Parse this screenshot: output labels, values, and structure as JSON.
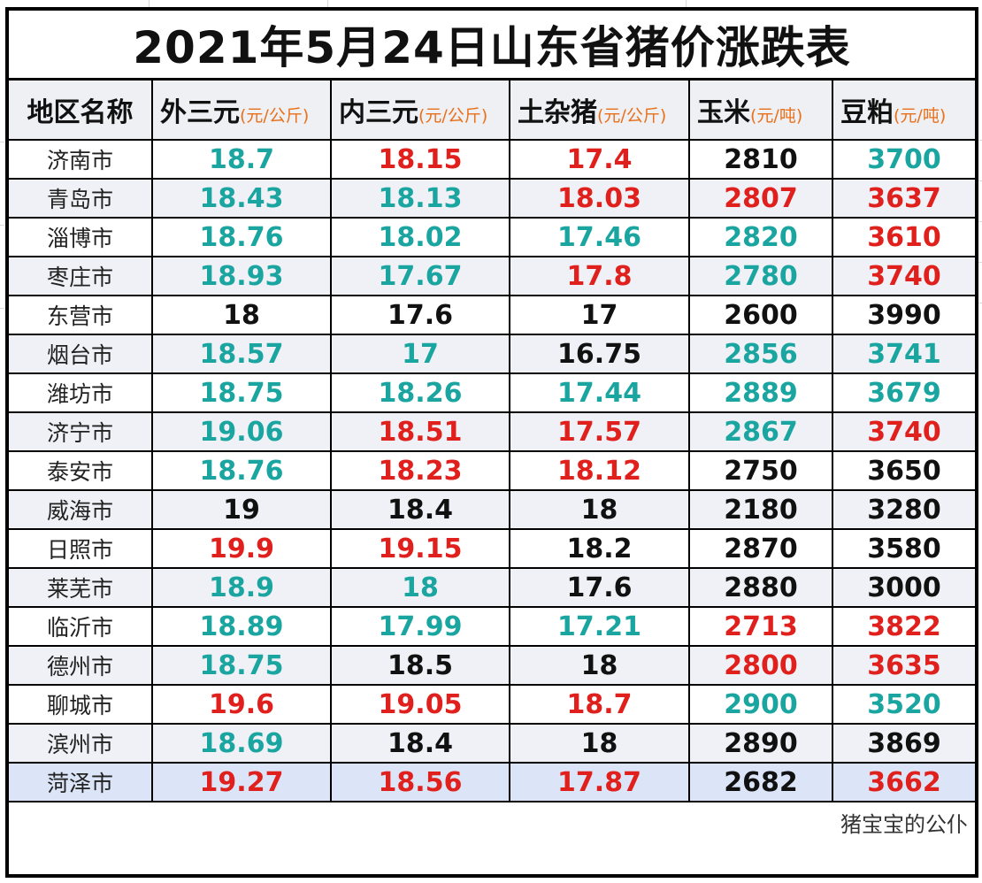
{
  "title": "2021年5月24日山东省猪价涨跌表",
  "colors": {
    "up": "#e0201c",
    "down": "#1aa5a0",
    "flat": "#111111",
    "unit": "#e8701a",
    "row_alt": "#eff1f6",
    "row_highlight": "#dbe5f7"
  },
  "columns": [
    {
      "label": "地区名称",
      "unit": ""
    },
    {
      "label": "外三元",
      "unit": "(元/公斤)"
    },
    {
      "label": "内三元",
      "unit": "(元/公斤)"
    },
    {
      "label": "土杂猪",
      "unit": "(元/公斤)"
    },
    {
      "label": "玉米",
      "unit": "(元/吨)"
    },
    {
      "label": "豆粕",
      "unit": "(元/吨)"
    }
  ],
  "rows": [
    {
      "region": "济南市",
      "cells": [
        {
          "v": "18.7",
          "t": "down"
        },
        {
          "v": "18.15",
          "t": "up"
        },
        {
          "v": "17.4",
          "t": "up"
        },
        {
          "v": "2810",
          "t": "flat"
        },
        {
          "v": "3700",
          "t": "down"
        }
      ]
    },
    {
      "region": "青岛市",
      "cells": [
        {
          "v": "18.43",
          "t": "down"
        },
        {
          "v": "18.13",
          "t": "down"
        },
        {
          "v": "18.03",
          "t": "up"
        },
        {
          "v": "2807",
          "t": "up"
        },
        {
          "v": "3637",
          "t": "up"
        }
      ]
    },
    {
      "region": "淄博市",
      "cells": [
        {
          "v": "18.76",
          "t": "down"
        },
        {
          "v": "18.02",
          "t": "down"
        },
        {
          "v": "17.46",
          "t": "down"
        },
        {
          "v": "2820",
          "t": "down"
        },
        {
          "v": "3610",
          "t": "up"
        }
      ]
    },
    {
      "region": "枣庄市",
      "cells": [
        {
          "v": "18.93",
          "t": "down"
        },
        {
          "v": "17.67",
          "t": "down"
        },
        {
          "v": "17.8",
          "t": "up"
        },
        {
          "v": "2780",
          "t": "down"
        },
        {
          "v": "3740",
          "t": "up"
        }
      ]
    },
    {
      "region": "东营市",
      "cells": [
        {
          "v": "18",
          "t": "flat"
        },
        {
          "v": "17.6",
          "t": "flat"
        },
        {
          "v": "17",
          "t": "flat"
        },
        {
          "v": "2600",
          "t": "flat"
        },
        {
          "v": "3990",
          "t": "flat"
        }
      ]
    },
    {
      "region": "烟台市",
      "cells": [
        {
          "v": "18.57",
          "t": "down"
        },
        {
          "v": "17",
          "t": "down"
        },
        {
          "v": "16.75",
          "t": "flat"
        },
        {
          "v": "2856",
          "t": "down"
        },
        {
          "v": "3741",
          "t": "down"
        }
      ]
    },
    {
      "region": "潍坊市",
      "cells": [
        {
          "v": "18.75",
          "t": "down"
        },
        {
          "v": "18.26",
          "t": "down"
        },
        {
          "v": "17.44",
          "t": "down"
        },
        {
          "v": "2889",
          "t": "down"
        },
        {
          "v": "3679",
          "t": "down"
        }
      ]
    },
    {
      "region": "济宁市",
      "cells": [
        {
          "v": "19.06",
          "t": "down"
        },
        {
          "v": "18.51",
          "t": "up"
        },
        {
          "v": "17.57",
          "t": "up"
        },
        {
          "v": "2867",
          "t": "down"
        },
        {
          "v": "3740",
          "t": "up"
        }
      ]
    },
    {
      "region": "泰安市",
      "cells": [
        {
          "v": "18.76",
          "t": "down"
        },
        {
          "v": "18.23",
          "t": "up"
        },
        {
          "v": "18.12",
          "t": "up"
        },
        {
          "v": "2750",
          "t": "flat"
        },
        {
          "v": "3650",
          "t": "flat"
        }
      ]
    },
    {
      "region": "威海市",
      "cells": [
        {
          "v": "19",
          "t": "flat"
        },
        {
          "v": "18.4",
          "t": "flat"
        },
        {
          "v": "18",
          "t": "flat"
        },
        {
          "v": "2180",
          "t": "flat"
        },
        {
          "v": "3280",
          "t": "flat"
        }
      ]
    },
    {
      "region": "日照市",
      "cells": [
        {
          "v": "19.9",
          "t": "up"
        },
        {
          "v": "19.15",
          "t": "up"
        },
        {
          "v": "18.2",
          "t": "flat"
        },
        {
          "v": "2870",
          "t": "flat"
        },
        {
          "v": "3580",
          "t": "flat"
        }
      ]
    },
    {
      "region": "莱芜市",
      "cells": [
        {
          "v": "18.9",
          "t": "down"
        },
        {
          "v": "18",
          "t": "down"
        },
        {
          "v": "17.6",
          "t": "flat"
        },
        {
          "v": "2880",
          "t": "flat"
        },
        {
          "v": "3000",
          "t": "flat"
        }
      ]
    },
    {
      "region": "临沂市",
      "cells": [
        {
          "v": "18.89",
          "t": "down"
        },
        {
          "v": "17.99",
          "t": "down"
        },
        {
          "v": "17.21",
          "t": "down"
        },
        {
          "v": "2713",
          "t": "up"
        },
        {
          "v": "3822",
          "t": "up"
        }
      ]
    },
    {
      "region": "德州市",
      "cells": [
        {
          "v": "18.75",
          "t": "down"
        },
        {
          "v": "18.5",
          "t": "flat"
        },
        {
          "v": "18",
          "t": "flat"
        },
        {
          "v": "2800",
          "t": "up"
        },
        {
          "v": "3635",
          "t": "up"
        }
      ]
    },
    {
      "region": "聊城市",
      "cells": [
        {
          "v": "19.6",
          "t": "up"
        },
        {
          "v": "19.05",
          "t": "up"
        },
        {
          "v": "18.7",
          "t": "up"
        },
        {
          "v": "2900",
          "t": "down"
        },
        {
          "v": "3520",
          "t": "down"
        }
      ]
    },
    {
      "region": "滨州市",
      "cells": [
        {
          "v": "18.69",
          "t": "down"
        },
        {
          "v": "18.4",
          "t": "flat"
        },
        {
          "v": "18",
          "t": "flat"
        },
        {
          "v": "2890",
          "t": "flat"
        },
        {
          "v": "3869",
          "t": "flat"
        }
      ]
    },
    {
      "region": "菏泽市",
      "cells": [
        {
          "v": "19.27",
          "t": "up"
        },
        {
          "v": "18.56",
          "t": "up"
        },
        {
          "v": "17.87",
          "t": "up"
        },
        {
          "v": "2682",
          "t": "flat"
        },
        {
          "v": "3662",
          "t": "up"
        }
      ],
      "highlight": true
    }
  ],
  "footer": {
    "watermark": "猪宝宝的公仆"
  }
}
